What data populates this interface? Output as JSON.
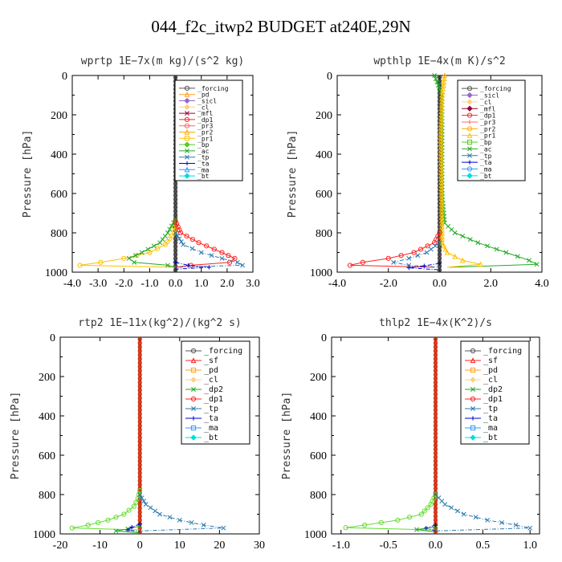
{
  "figure": {
    "title": "044_f2c_itwp2  BUDGET at240E,29N"
  },
  "chart_data": [
    {
      "type": "line",
      "title": "wprtp  1E−7x(m kg)/(s^2 kg)",
      "ylabel": "Pressure [hPa]",
      "xlim": [
        -4.0,
        3.0
      ],
      "ylim": [
        1000,
        0
      ],
      "xticks": [
        -4.0,
        -3.0,
        -2.0,
        -1.0,
        0.0,
        1.0,
        2.0,
        3.0
      ],
      "xtick_labels": [
        "-4.0",
        "-3.0",
        "-2.0",
        "-1.0",
        "0.0",
        "1.0",
        "2.0",
        "3.0"
      ],
      "yticks": [
        0,
        200,
        400,
        600,
        800,
        1000
      ],
      "legend_position": "top-right",
      "legend": [
        "_forcing",
        "_pd",
        "_sicl",
        "_cl",
        "_mfl",
        "_dp1",
        "_pr3",
        "_pr2",
        "_pr1",
        "_bp",
        "_ac",
        "_tp",
        "_ta",
        "_ma",
        "_bt"
      ],
      "series": [
        {
          "name": "_pr1",
          "color": "#ffc000",
          "p": [
            740,
            800,
            860,
            900,
            930,
            950,
            965,
            975
          ],
          "x": [
            0,
            -0.05,
            -0.4,
            -1.0,
            -2.0,
            -2.9,
            -3.7,
            0
          ]
        },
        {
          "name": "_ac",
          "color": "#22aa22",
          "p": [
            730,
            800,
            850,
            900,
            930,
            950,
            965,
            975
          ],
          "x": [
            0,
            -0.3,
            -0.6,
            -1.3,
            -1.8,
            -1.6,
            -0.3,
            0
          ]
        },
        {
          "name": "_dp1",
          "color": "#ff2222",
          "p": [
            740,
            800,
            850,
            900,
            930,
            950,
            965,
            975
          ],
          "x": [
            0,
            0.2,
            0.9,
            1.8,
            2.3,
            2.1,
            0.6,
            0
          ]
        },
        {
          "name": "_tp",
          "color": "#2a7ab0",
          "p": [
            800,
            860,
            900,
            930,
            950,
            965,
            975
          ],
          "x": [
            0,
            0.3,
            1.0,
            1.8,
            2.4,
            2.6,
            0
          ]
        },
        {
          "name": "_ta",
          "color": "#0000cc",
          "p": [
            950,
            965,
            975,
            985
          ],
          "x": [
            0,
            0.5,
            1.3,
            0
          ]
        }
      ]
    },
    {
      "type": "line",
      "title": "wpthlp  1E−4x(m K)/s^2",
      "ylabel": "Pressure [hPa]",
      "xlim": [
        -4.0,
        4.0
      ],
      "ylim": [
        1000,
        0
      ],
      "xticks": [
        -4.0,
        -2.0,
        0.0,
        2.0,
        4.0
      ],
      "xtick_labels": [
        "-4.0",
        "-2.0",
        "0.0",
        "2.0",
        "4.0"
      ],
      "yticks": [
        0,
        200,
        400,
        600,
        800,
        1000
      ],
      "legend_position": "top-right",
      "legend": [
        "_forcing",
        "_sicl",
        "_cl",
        "_mfl",
        "_dp1",
        "_pr3",
        "_pr2",
        "_pr1",
        "_bp",
        "_ac",
        "_tp",
        "_ta",
        "_ma",
        "_bt"
      ],
      "series": [
        {
          "name": "_ac",
          "color": "#22aa22",
          "p": [
            0,
            100,
            300,
            600,
            750,
            800,
            850,
            900,
            940,
            960,
            975
          ],
          "x": [
            -0.2,
            0.1,
            0.1,
            0.1,
            0.2,
            0.6,
            1.5,
            2.6,
            3.5,
            3.8,
            0.4
          ]
        },
        {
          "name": "_pr1",
          "color": "#ffc000",
          "p": [
            0,
            100,
            300,
            850,
            900,
            940,
            960,
            975
          ],
          "x": [
            0.2,
            0.1,
            0.05,
            0.1,
            0.3,
            0.9,
            1.6,
            0.3
          ]
        },
        {
          "name": "_dp1",
          "color": "#ff2222",
          "p": [
            800,
            850,
            900,
            930,
            950,
            965,
            975
          ],
          "x": [
            0,
            -0.2,
            -1.0,
            -2.0,
            -3.0,
            -3.5,
            -0.2
          ]
        },
        {
          "name": "_tp",
          "color": "#2a7ab0",
          "p": [
            850,
            900,
            930,
            950,
            965,
            975
          ],
          "x": [
            0,
            -0.5,
            -1.2,
            -1.8,
            -1.2,
            0
          ]
        },
        {
          "name": "_ta",
          "color": "#0000cc",
          "p": [
            955,
            968,
            978,
            988
          ],
          "x": [
            0,
            -0.6,
            -1.2,
            0
          ]
        }
      ]
    },
    {
      "type": "line",
      "title": "rtp2  1E−11x(kg^2)/(kg^2 s)",
      "ylabel": "Pressure [hPa]",
      "xlim": [
        -20,
        30
      ],
      "ylim": [
        1000,
        0
      ],
      "xticks": [
        -20,
        -10,
        0,
        10,
        20,
        30
      ],
      "xtick_labels": [
        "-20",
        "-10",
        "0",
        "10",
        "20",
        "30"
      ],
      "yticks": [
        0,
        200,
        400,
        600,
        800,
        1000
      ],
      "legend_position": "top-right",
      "legend": [
        "_forcing",
        "_sf",
        "_pd",
        "_cl",
        "_dp2",
        "_dp1",
        "_tp",
        "_ta",
        "_ma",
        "_bt"
      ],
      "series": [
        {
          "name": "_dp1",
          "color": "#66dd33",
          "p": [
            780,
            820,
            860,
            900,
            930,
            955,
            970,
            980
          ],
          "x": [
            0,
            -0.5,
            -1.5,
            -4,
            -8,
            -13,
            -17,
            0
          ]
        },
        {
          "name": "_dp2",
          "color": "#22aa22",
          "p": [
            960,
            975,
            985,
            995
          ],
          "x": [
            0,
            -3,
            -6,
            0
          ]
        },
        {
          "name": "_tp",
          "color": "#2a7ab0",
          "p": [
            800,
            850,
            900,
            930,
            955,
            970,
            985
          ],
          "x": [
            0,
            1.5,
            5,
            10,
            16,
            21,
            0
          ]
        },
        {
          "name": "_ta",
          "color": "#0000cc",
          "p": [
            950,
            965,
            980,
            990
          ],
          "x": [
            0,
            -2,
            -3,
            0
          ]
        }
      ]
    },
    {
      "type": "line",
      "title": "thlp2  1E−4x(K^2)/s",
      "ylabel": "Pressure [hPa]",
      "xlim": [
        -1.1,
        1.1
      ],
      "ylim": [
        1000,
        0
      ],
      "xticks": [
        -1.0,
        -0.5,
        0.0,
        0.5,
        1.0
      ],
      "xtick_labels": [
        "-1.0",
        "-0.5",
        "0.0",
        "0.5",
        "1.0"
      ],
      "yticks": [
        0,
        200,
        400,
        600,
        800,
        1000
      ],
      "legend_position": "top-right",
      "legend": [
        "_forcing",
        "_sf",
        "_pd",
        "_cl",
        "_dp2",
        "_dp1",
        "_tp",
        "_ta",
        "_ma",
        "_bt"
      ],
      "series": [
        {
          "name": "_dp1",
          "color": "#66dd33",
          "p": [
            800,
            850,
            900,
            930,
            955,
            968,
            980
          ],
          "x": [
            0,
            -0.05,
            -0.15,
            -0.4,
            -0.75,
            -0.95,
            0
          ]
        },
        {
          "name": "_dp2",
          "color": "#22aa22",
          "p": [
            965,
            978,
            990
          ],
          "x": [
            0,
            -0.2,
            0
          ]
        },
        {
          "name": "_tp",
          "color": "#2a7ab0",
          "p": [
            800,
            850,
            900,
            930,
            955,
            970,
            985
          ],
          "x": [
            0,
            0.1,
            0.3,
            0.55,
            0.85,
            1.0,
            0
          ]
        },
        {
          "name": "_ta",
          "color": "#0000cc",
          "p": [
            955,
            970,
            985
          ],
          "x": [
            0,
            -0.1,
            0
          ]
        }
      ]
    }
  ],
  "colors": {
    "_forcing": "#555555",
    "_sf": "#ff2222",
    "_pd": "#ffa020",
    "_sicl": "#9966cc",
    "_cl": "#ffd080",
    "_mfl": "#990033",
    "_dp1": "#ff2222",
    "_dp2": "#22aa22",
    "_pr3": "#ff6666",
    "_pr2": "#ffaa00",
    "_pr1": "#ffc000",
    "_bp": "#55cc22",
    "_ac": "#22aa22",
    "_tp": "#2a7ab0",
    "_ta": "#0000cc",
    "_ma": "#3399ff",
    "_bt": "#00dddd",
    "vertical_bar_12": "#333333",
    "vertical_bar_34": "#cc2200"
  }
}
